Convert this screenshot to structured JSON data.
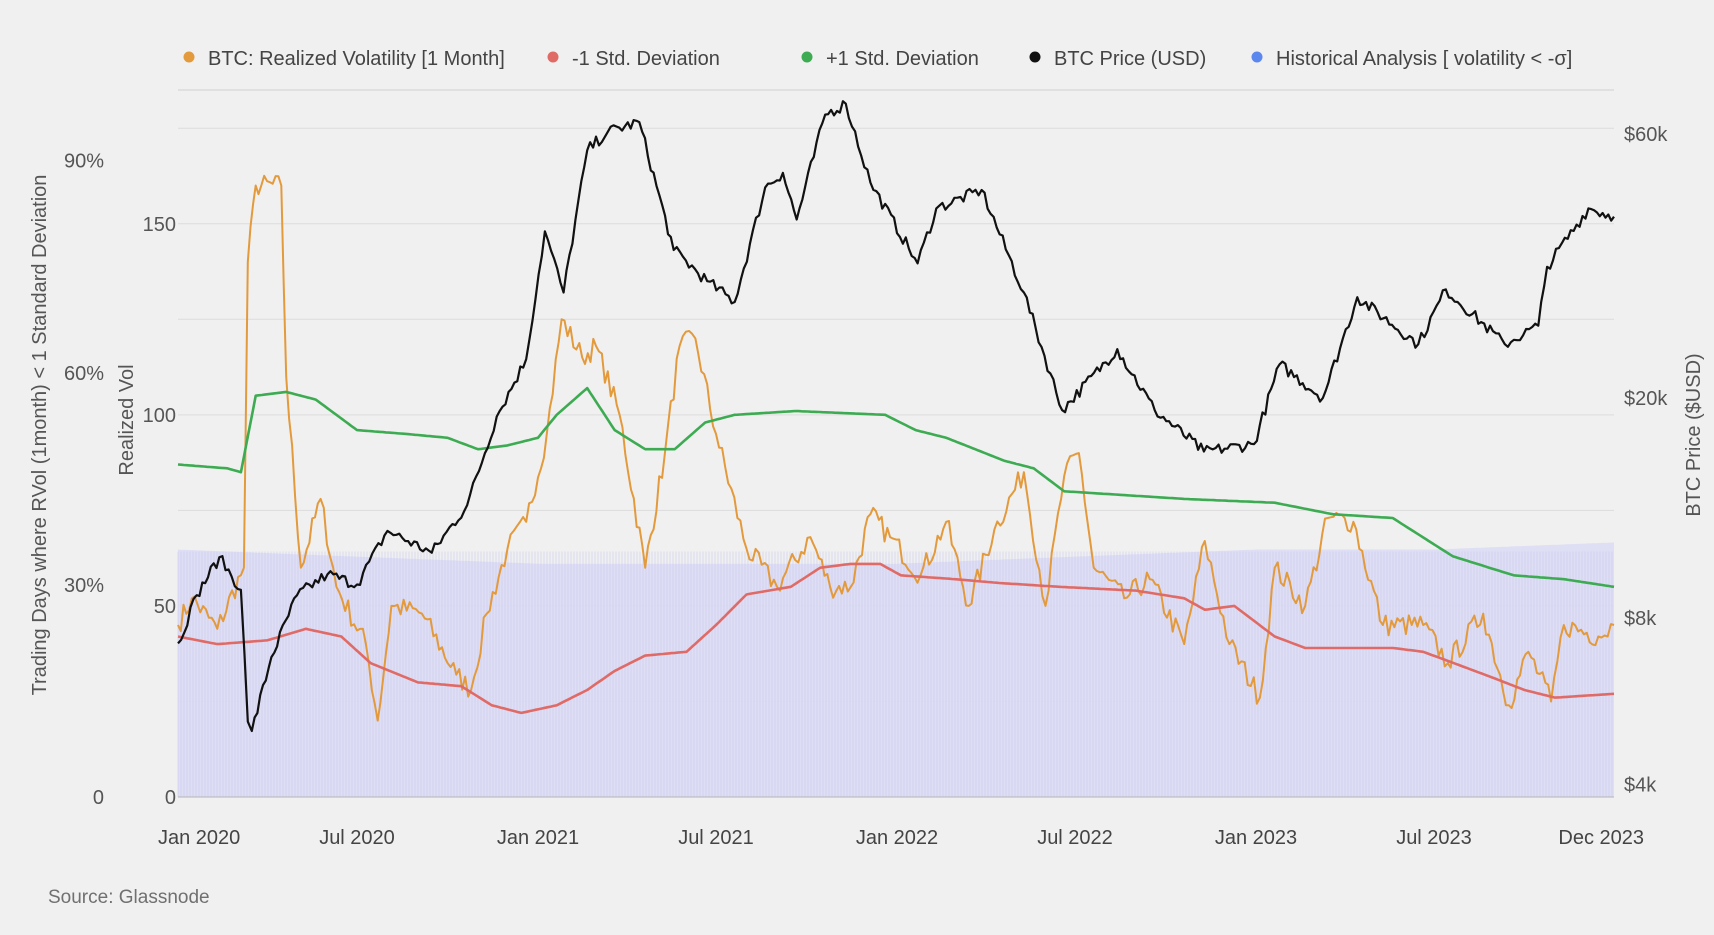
{
  "chart_data": {
    "type": "line",
    "source": "Source: Glassnode",
    "legend_placement": "top",
    "legend": [
      {
        "key": "realized_vol",
        "label": "BTC: Realized Volatility [1 Month]",
        "color": "#e39a3c"
      },
      {
        "key": "minus_sd",
        "label": "-1 Std. Deviation",
        "color": "#e06b66"
      },
      {
        "key": "plus_sd",
        "label": "+1 Std. Deviation",
        "color": "#3dab52"
      },
      {
        "key": "price",
        "label": "BTC Price (USD)",
        "color": "#111111"
      },
      {
        "key": "historical",
        "label": "Historical Analysis [ volatility < -σ]",
        "color": "#5b87ef"
      }
    ],
    "axes": {
      "x_ticks": [
        "Jan 2020",
        "Jul 2020",
        "Jan 2021",
        "Jul 2021",
        "Jan 2022",
        "Jul 2022",
        "Jan 2023",
        "Jul 2023",
        "Dec 2023"
      ],
      "x_range": [
        "2020-01-01",
        "2023-12-31"
      ],
      "left_outer_label": "Trading Days where RVol (1month) < 1 Standard Deviation",
      "left_outer_ticks": [
        "0",
        "30%",
        "60%",
        "90%"
      ],
      "left_outer_range": [
        0,
        1
      ],
      "left_inner_label": "Realized Vol",
      "left_inner_ticks": [
        "0",
        "50",
        "100",
        "150"
      ],
      "left_inner_range": [
        0,
        185
      ],
      "right_label": "BTC Price ($USD)",
      "right_ticks": [
        "$4k",
        "$8k",
        "$20k",
        "$60k"
      ],
      "right_tick_values": [
        4000,
        8000,
        20000,
        60000
      ],
      "right_scale": "log",
      "right_range": [
        3800,
        72000
      ],
      "grid": true
    },
    "series": [
      {
        "key": "price",
        "name": "BTC Price (USD)",
        "axis": "right",
        "color": "#111111",
        "points": [
          [
            "2020-01-01",
            7200
          ],
          [
            "2020-01-20",
            8800
          ],
          [
            "2020-02-12",
            10300
          ],
          [
            "2020-03-05",
            9000
          ],
          [
            "2020-03-12",
            5200
          ],
          [
            "2020-03-16",
            5000
          ],
          [
            "2020-04-05",
            6800
          ],
          [
            "2020-05-01",
            8800
          ],
          [
            "2020-06-01",
            9600
          ],
          [
            "2020-07-01",
            9200
          ],
          [
            "2020-08-01",
            11500
          ],
          [
            "2020-09-15",
            10500
          ],
          [
            "2020-10-21",
            12800
          ],
          [
            "2020-11-20",
            18500
          ],
          [
            "2020-12-20",
            23500
          ],
          [
            "2021-01-08",
            40000
          ],
          [
            "2021-01-27",
            31000
          ],
          [
            "2021-02-20",
            56000
          ],
          [
            "2021-03-13",
            60500
          ],
          [
            "2021-04-14",
            63000
          ],
          [
            "2021-05-19",
            37000
          ],
          [
            "2021-06-22",
            32500
          ],
          [
            "2021-07-20",
            29800
          ],
          [
            "2021-08-20",
            48000
          ],
          [
            "2021-09-07",
            51000
          ],
          [
            "2021-09-21",
            42000
          ],
          [
            "2021-10-20",
            65000
          ],
          [
            "2021-11-10",
            68000
          ],
          [
            "2021-12-05",
            49000
          ],
          [
            "2022-01-22",
            35000
          ],
          [
            "2022-02-10",
            44000
          ],
          [
            "2022-03-28",
            47500
          ],
          [
            "2022-05-10",
            31000
          ],
          [
            "2022-06-18",
            19000
          ],
          [
            "2022-08-13",
            24500
          ],
          [
            "2022-09-20",
            19000
          ],
          [
            "2022-11-09",
            16000
          ],
          [
            "2022-12-30",
            16500
          ],
          [
            "2023-01-25",
            23000
          ],
          [
            "2023-03-10",
            20000
          ],
          [
            "2023-04-14",
            30400
          ],
          [
            "2023-06-15",
            25000
          ],
          [
            "2023-07-13",
            31400
          ],
          [
            "2023-09-11",
            25000
          ],
          [
            "2023-10-15",
            27000
          ],
          [
            "2023-10-24",
            34500
          ],
          [
            "2023-12-05",
            44000
          ],
          [
            "2023-12-31",
            42500
          ]
        ]
      },
      {
        "key": "realized_vol",
        "name": "BTC: Realized Volatility [1 Month]",
        "axis": "left_inner",
        "color": "#e39a3c",
        "points": [
          [
            "2020-01-01",
            45
          ],
          [
            "2020-01-15",
            52
          ],
          [
            "2020-02-10",
            44
          ],
          [
            "2020-03-08",
            60
          ],
          [
            "2020-03-12",
            140
          ],
          [
            "2020-03-20",
            160
          ],
          [
            "2020-04-15",
            160
          ],
          [
            "2020-04-20",
            110
          ],
          [
            "2020-05-05",
            60
          ],
          [
            "2020-05-25",
            78
          ],
          [
            "2020-06-10",
            55
          ],
          [
            "2020-07-10",
            40
          ],
          [
            "2020-07-22",
            20
          ],
          [
            "2020-08-05",
            50
          ],
          [
            "2020-09-05",
            48
          ],
          [
            "2020-10-10",
            32
          ],
          [
            "2020-10-25",
            28
          ],
          [
            "2020-11-10",
            48
          ],
          [
            "2020-12-01",
            65
          ],
          [
            "2020-12-20",
            72
          ],
          [
            "2021-01-10",
            95
          ],
          [
            "2021-01-25",
            125
          ],
          [
            "2021-02-15",
            115
          ],
          [
            "2021-03-01",
            118
          ],
          [
            "2021-03-25",
            100
          ],
          [
            "2021-04-20",
            60
          ],
          [
            "2021-05-10",
            90
          ],
          [
            "2021-05-25",
            118
          ],
          [
            "2021-06-10",
            120
          ],
          [
            "2021-07-01",
            95
          ],
          [
            "2021-08-01",
            65
          ],
          [
            "2021-09-01",
            55
          ],
          [
            "2021-10-05",
            68
          ],
          [
            "2021-10-25",
            55
          ],
          [
            "2021-11-15",
            55
          ],
          [
            "2021-12-05",
            74
          ],
          [
            "2021-12-25",
            68
          ],
          [
            "2022-01-25",
            58
          ],
          [
            "2022-02-20",
            72
          ],
          [
            "2022-03-15",
            50
          ],
          [
            "2022-04-10",
            70
          ],
          [
            "2022-05-10",
            85
          ],
          [
            "2022-06-01",
            50
          ],
          [
            "2022-06-20",
            84
          ],
          [
            "2022-07-05",
            90
          ],
          [
            "2022-07-20",
            60
          ],
          [
            "2022-08-20",
            52
          ],
          [
            "2022-09-15",
            57
          ],
          [
            "2022-10-20",
            40
          ],
          [
            "2022-11-10",
            67
          ],
          [
            "2022-12-05",
            40
          ],
          [
            "2023-01-05",
            26
          ],
          [
            "2023-01-20",
            60
          ],
          [
            "2023-02-20",
            50
          ],
          [
            "2023-03-15",
            73
          ],
          [
            "2023-04-10",
            72
          ],
          [
            "2023-05-10",
            45
          ],
          [
            "2023-06-20",
            45
          ],
          [
            "2023-07-15",
            35
          ],
          [
            "2023-08-20",
            48
          ],
          [
            "2023-09-15",
            24
          ],
          [
            "2023-10-05",
            38
          ],
          [
            "2023-10-28",
            25
          ],
          [
            "2023-11-10",
            45
          ],
          [
            "2023-12-15",
            42
          ],
          [
            "2023-12-31",
            45
          ]
        ]
      },
      {
        "key": "plus_sd",
        "name": "+1 Std. Deviation",
        "axis": "left_inner",
        "color": "#3dab52",
        "points": [
          [
            "2020-01-01",
            87
          ],
          [
            "2020-02-20",
            86
          ],
          [
            "2020-03-05",
            85
          ],
          [
            "2020-03-20",
            105
          ],
          [
            "2020-04-20",
            106
          ],
          [
            "2020-05-20",
            104
          ],
          [
            "2020-07-01",
            96
          ],
          [
            "2020-08-20",
            95
          ],
          [
            "2020-10-01",
            94
          ],
          [
            "2020-11-01",
            91
          ],
          [
            "2020-12-01",
            92
          ],
          [
            "2021-01-01",
            94
          ],
          [
            "2021-01-20",
            100
          ],
          [
            "2021-02-20",
            107
          ],
          [
            "2021-03-20",
            96
          ],
          [
            "2021-04-20",
            91
          ],
          [
            "2021-05-20",
            91
          ],
          [
            "2021-06-20",
            98
          ],
          [
            "2021-07-20",
            100
          ],
          [
            "2021-09-20",
            101
          ],
          [
            "2021-12-20",
            100
          ],
          [
            "2022-01-20",
            96
          ],
          [
            "2022-02-20",
            94
          ],
          [
            "2022-04-20",
            88
          ],
          [
            "2022-05-20",
            86
          ],
          [
            "2022-06-20",
            80
          ],
          [
            "2022-08-20",
            79
          ],
          [
            "2022-10-20",
            78
          ],
          [
            "2023-01-20",
            77
          ],
          [
            "2023-03-20",
            74
          ],
          [
            "2023-05-20",
            73
          ],
          [
            "2023-07-20",
            63
          ],
          [
            "2023-09-20",
            58
          ],
          [
            "2023-11-10",
            57
          ],
          [
            "2023-12-31",
            55
          ]
        ]
      },
      {
        "key": "minus_sd",
        "name": "-1 Std. Deviation",
        "axis": "left_inner",
        "color": "#e06b66",
        "points": [
          [
            "2020-01-01",
            42
          ],
          [
            "2020-02-10",
            40
          ],
          [
            "2020-04-01",
            41
          ],
          [
            "2020-05-10",
            44
          ],
          [
            "2020-06-15",
            42
          ],
          [
            "2020-07-15",
            35
          ],
          [
            "2020-09-01",
            30
          ],
          [
            "2020-10-15",
            29
          ],
          [
            "2020-11-15",
            24
          ],
          [
            "2020-12-15",
            22
          ],
          [
            "2021-01-20",
            24
          ],
          [
            "2021-02-20",
            28
          ],
          [
            "2021-03-20",
            33
          ],
          [
            "2021-04-20",
            37
          ],
          [
            "2021-06-01",
            38
          ],
          [
            "2021-07-01",
            45
          ],
          [
            "2021-08-01",
            53
          ],
          [
            "2021-09-15",
            55
          ],
          [
            "2021-10-15",
            60
          ],
          [
            "2021-11-15",
            61
          ],
          [
            "2021-12-15",
            61
          ],
          [
            "2022-01-05",
            58
          ],
          [
            "2022-03-01",
            57
          ],
          [
            "2022-04-15",
            56
          ],
          [
            "2022-06-15",
            55
          ],
          [
            "2022-09-01",
            54
          ],
          [
            "2022-10-20",
            52
          ],
          [
            "2022-11-10",
            49
          ],
          [
            "2022-12-10",
            50
          ],
          [
            "2023-01-20",
            42
          ],
          [
            "2023-02-20",
            39
          ],
          [
            "2023-05-20",
            39
          ],
          [
            "2023-06-20",
            38
          ],
          [
            "2023-08-01",
            34
          ],
          [
            "2023-09-01",
            31
          ],
          [
            "2023-10-01",
            28
          ],
          [
            "2023-11-01",
            26
          ],
          [
            "2023-12-31",
            27
          ]
        ]
      },
      {
        "key": "historical",
        "name": "Historical Analysis [ volatility < -σ]",
        "axis": "left_outer",
        "type": "bar",
        "color": "#dcdcf5",
        "points": [
          [
            "2020-01-01",
            0.35
          ],
          [
            "2020-07-01",
            0.34
          ],
          [
            "2021-01-01",
            0.33
          ],
          [
            "2021-07-01",
            0.33
          ],
          [
            "2022-01-01",
            0.33
          ],
          [
            "2022-07-01",
            0.34
          ],
          [
            "2023-01-01",
            0.35
          ],
          [
            "2023-07-01",
            0.35
          ],
          [
            "2023-12-31",
            0.36
          ]
        ]
      }
    ]
  }
}
